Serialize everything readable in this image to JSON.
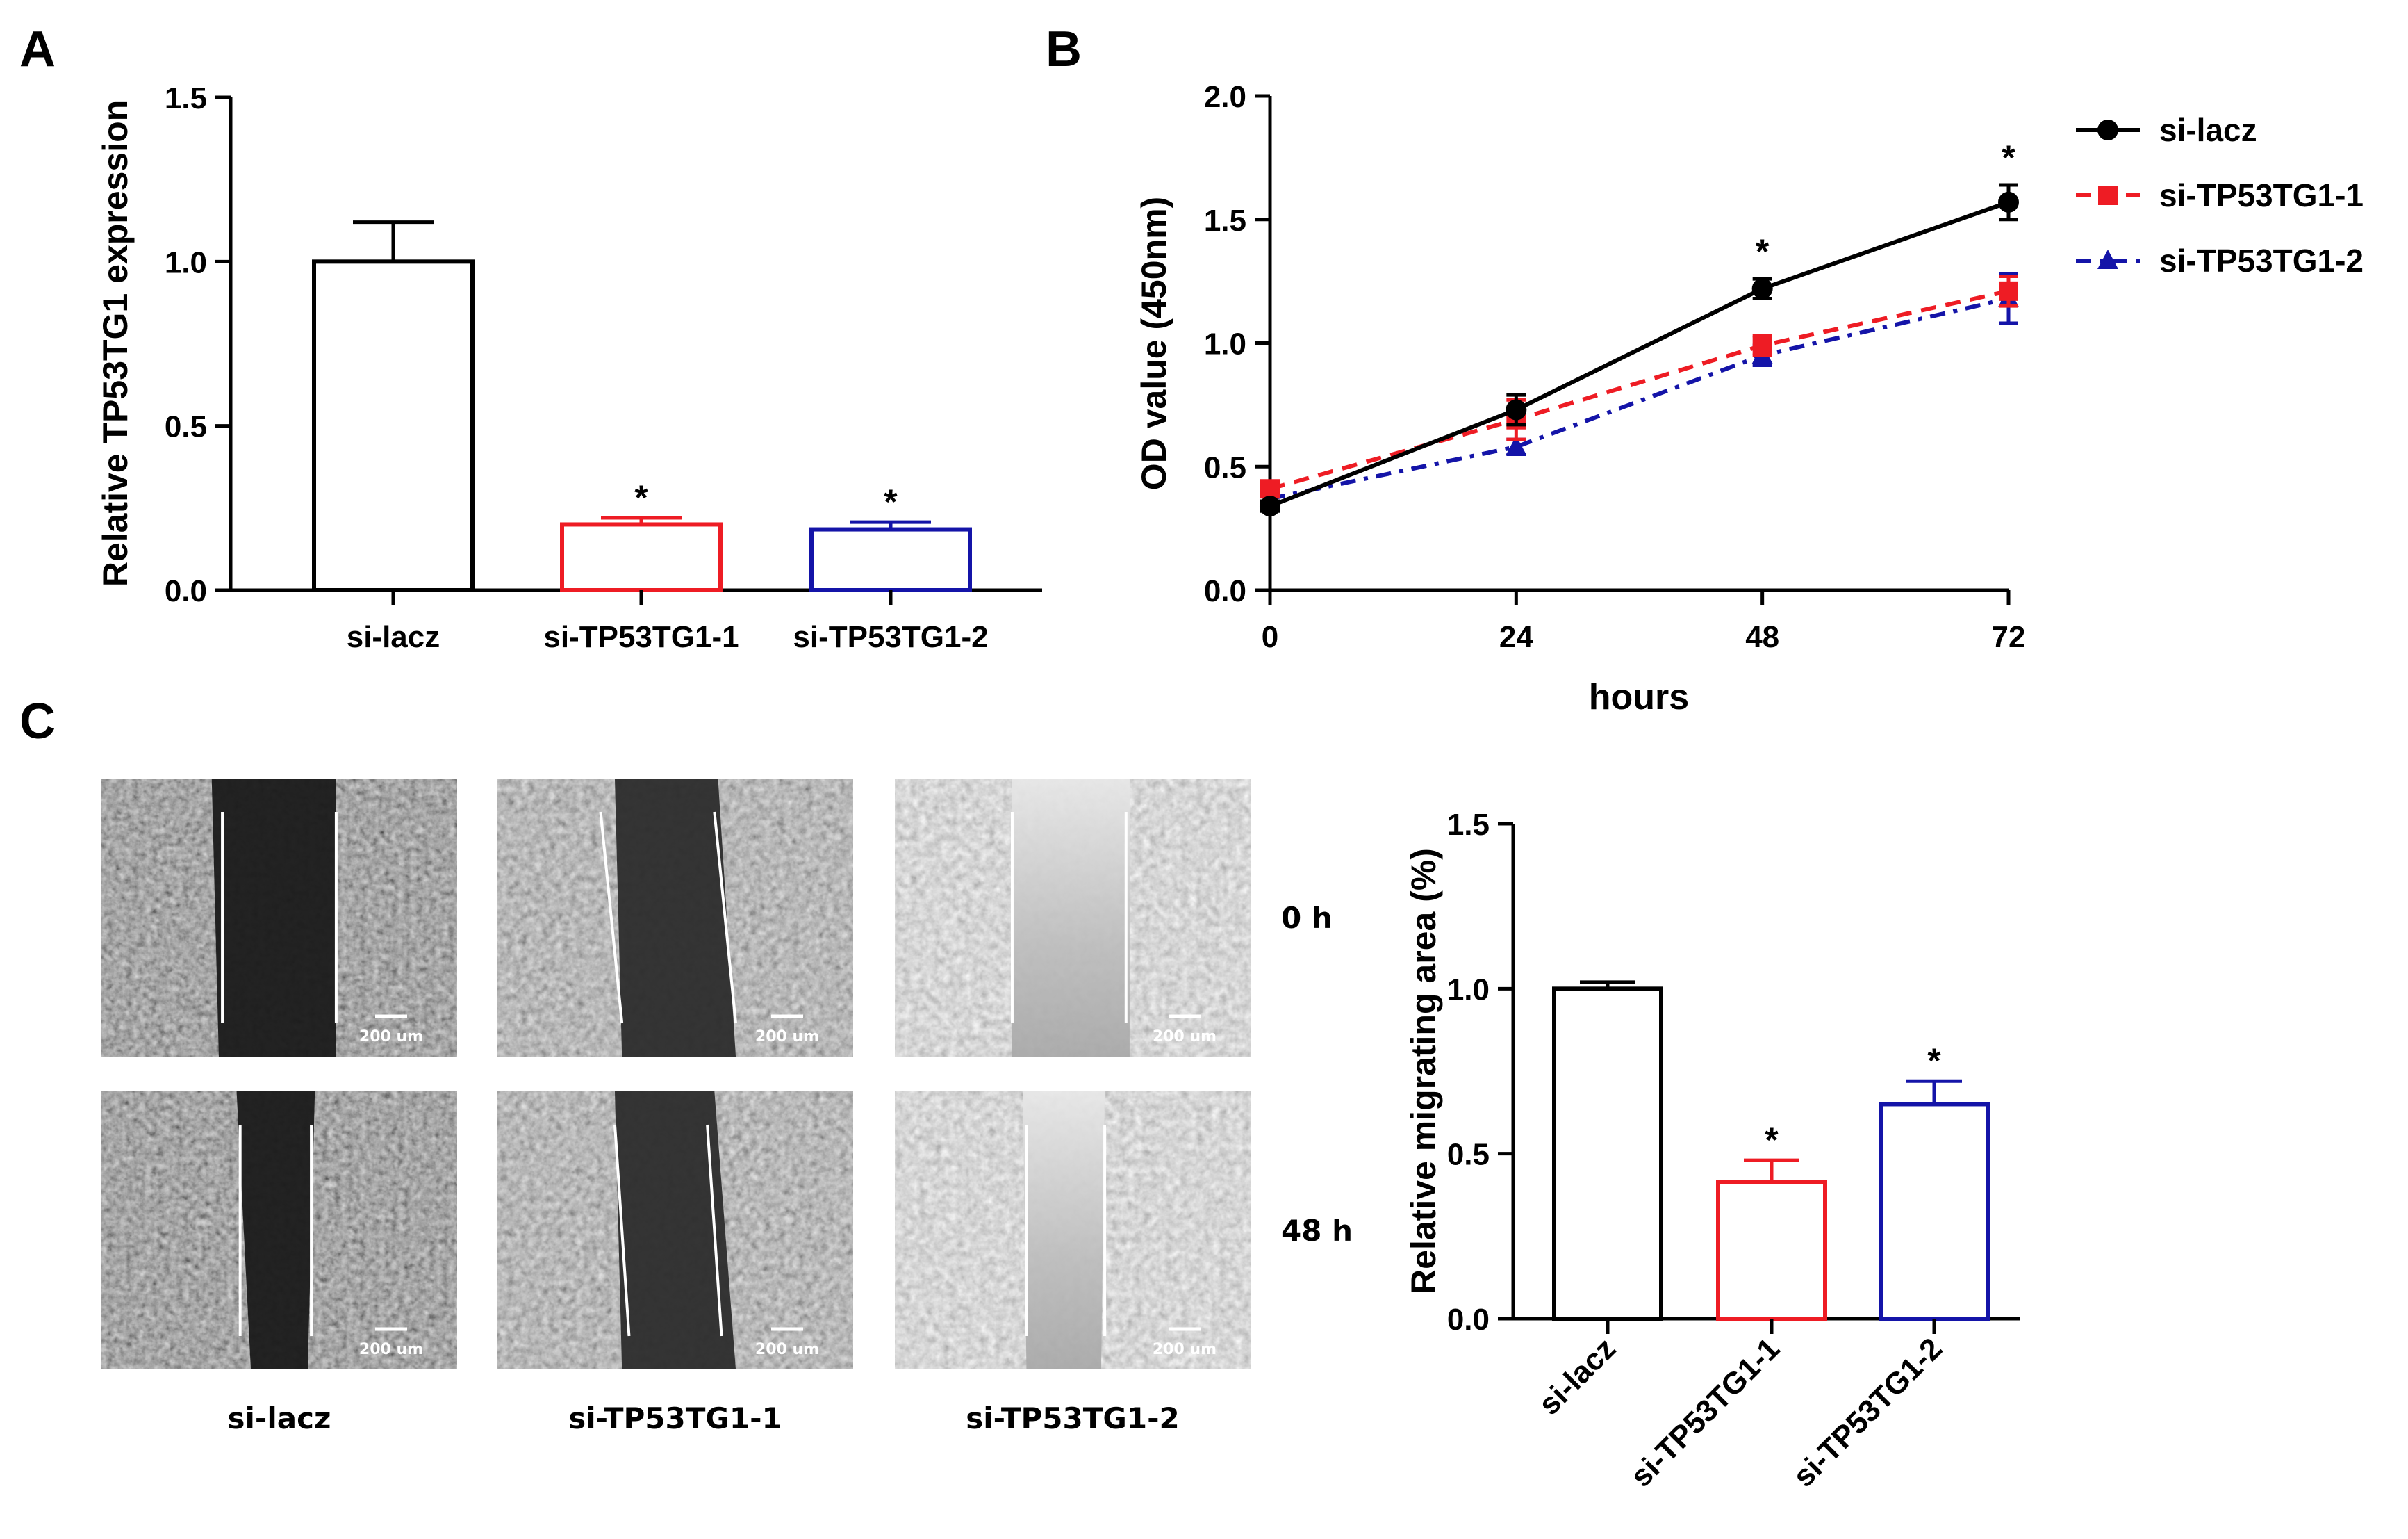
{
  "panels": {
    "a": "A",
    "b": "B",
    "c": "C"
  },
  "chart_data": [
    {
      "id": "A",
      "type": "bar",
      "title": "",
      "xlabel": "",
      "ylabel": "Relative TP53TG1 expression",
      "ylim": [
        0,
        1.5
      ],
      "yticks": [
        "0.0",
        "0.5",
        "1.0",
        "1.5"
      ],
      "categories": [
        "si-lacz",
        "si-TP53TG1-1",
        "si-TP53TG1-2"
      ],
      "values": [
        1.0,
        0.2,
        0.185
      ],
      "errors": [
        0.12,
        0.02,
        0.022
      ],
      "significance": [
        "",
        "*",
        "*"
      ],
      "colors": [
        "#000000",
        "#ee1c24",
        "#1414a8"
      ],
      "grid": false
    },
    {
      "id": "B",
      "type": "line",
      "title": "",
      "xlabel": "hours",
      "ylabel": "OD value (450nm)",
      "x": [
        0,
        24,
        48,
        72
      ],
      "xticks": [
        "0",
        "24",
        "48",
        "72"
      ],
      "ylim": [
        0,
        2.0
      ],
      "yticks": [
        "0.0",
        "0.5",
        "1.0",
        "1.5",
        "2.0"
      ],
      "series": [
        {
          "name": "si-lacz",
          "values": [
            0.34,
            0.73,
            1.22,
            1.57
          ],
          "errors": [
            0.02,
            0.06,
            0.04,
            0.07
          ],
          "color": "#000000",
          "marker": "circle",
          "dash": "solid"
        },
        {
          "name": "si-TP53TG1-1",
          "values": [
            0.41,
            0.69,
            0.99,
            1.21
          ],
          "errors": [
            0.02,
            0.08,
            0.04,
            0.06
          ],
          "color": "#ee1c24",
          "marker": "square",
          "dash": "dashed"
        },
        {
          "name": "si-TP53TG1-2",
          "values": [
            0.37,
            0.58,
            0.95,
            1.18
          ],
          "errors": [
            0.02,
            0.03,
            0.04,
            0.1
          ],
          "color": "#1414a8",
          "marker": "triangle",
          "dash": "dashdot"
        }
      ],
      "significance_labels": {
        "48": "*",
        "72": "*"
      },
      "legend_position": "right",
      "grid": false
    },
    {
      "id": "C",
      "type": "bar",
      "title": "",
      "xlabel": "",
      "ylabel": "Relative migrating area (%)",
      "ylim": [
        0,
        1.5
      ],
      "yticks": [
        "0.0",
        "0.5",
        "1.0",
        "1.5"
      ],
      "categories": [
        "si-lacz",
        "si-TP53TG1-1",
        "si-TP53TG1-2"
      ],
      "values": [
        1.0,
        0.415,
        0.65
      ],
      "errors": [
        0.02,
        0.065,
        0.07
      ],
      "significance": [
        "",
        "*",
        "*"
      ],
      "colors": [
        "#000000",
        "#ee1c24",
        "#1414a8"
      ],
      "grid": false
    }
  ],
  "micrographs": {
    "row_labels": [
      "0 h",
      "48 h"
    ],
    "column_labels": [
      "si-lacz",
      "si-TP53TG1-1",
      "si-TP53TG1-2"
    ],
    "scale_bar_label": "200 um"
  }
}
